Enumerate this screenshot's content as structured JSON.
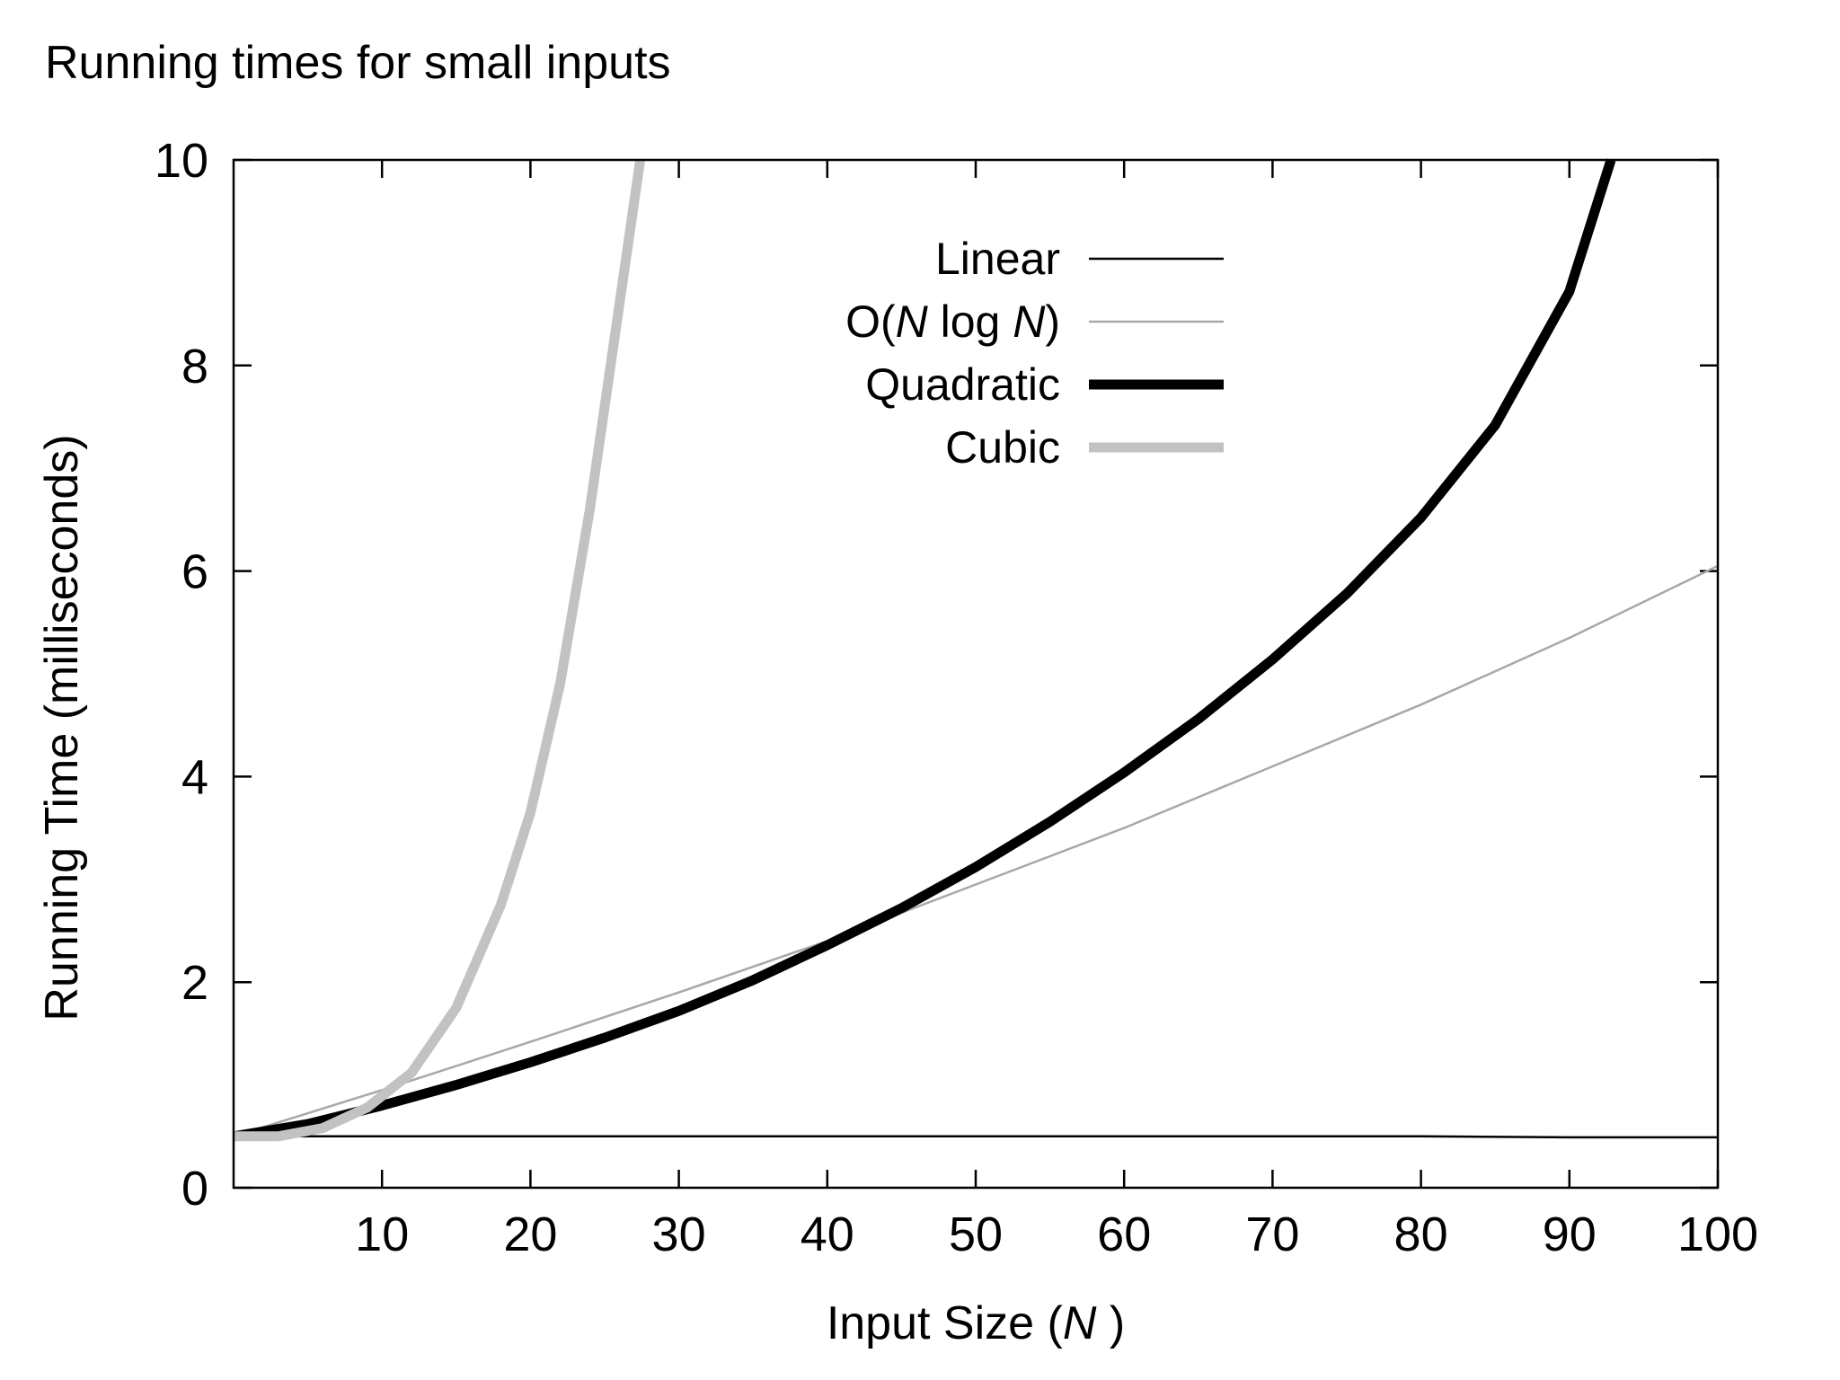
{
  "page": {
    "title": "Running times for small inputs"
  },
  "chart_data": {
    "type": "line",
    "title": "",
    "xlabel": {
      "prefix": "Input Size (",
      "var": "N",
      "suffix": " )"
    },
    "ylabel": "Running Time (milliseconds)",
    "xlim": [
      0,
      100
    ],
    "ylim": [
      0,
      10
    ],
    "xticks": [
      10,
      20,
      30,
      40,
      50,
      60,
      70,
      80,
      90,
      100
    ],
    "yticks": [
      0,
      2,
      4,
      6,
      8,
      10
    ],
    "grid": false,
    "legend_position": "top-center",
    "series": [
      {
        "name": "Linear",
        "label_parts": [
          {
            "text": "Linear",
            "italic": false
          }
        ],
        "color": "#000000",
        "style": "thin",
        "x": [
          0,
          10,
          20,
          30,
          40,
          50,
          60,
          70,
          80,
          90,
          100
        ],
        "y": [
          0.5,
          0.5,
          0.5,
          0.5,
          0.5,
          0.5,
          0.5,
          0.5,
          0.5,
          0.49,
          0.49
        ]
      },
      {
        "name": "O(N log N)",
        "label_parts": [
          {
            "text": "O(",
            "italic": false
          },
          {
            "text": "N",
            "italic": true
          },
          {
            "text": " log ",
            "italic": false
          },
          {
            "text": "N",
            "italic": true
          },
          {
            "text": ")",
            "italic": false
          }
        ],
        "color": "#a8a8a8",
        "style": "thin",
        "x": [
          0,
          10,
          20,
          30,
          40,
          50,
          60,
          70,
          80,
          90,
          100
        ],
        "y": [
          0.5,
          0.95,
          1.42,
          1.9,
          2.4,
          2.95,
          3.5,
          4.1,
          4.7,
          5.35,
          6.05
        ]
      },
      {
        "name": "Quadratic",
        "label_parts": [
          {
            "text": "Quadratic",
            "italic": false
          }
        ],
        "color": "#000000",
        "style": "thick",
        "x": [
          0,
          5,
          10,
          15,
          20,
          25,
          30,
          35,
          40,
          45,
          50,
          55,
          60,
          65,
          70,
          75,
          80,
          85,
          90,
          92.8
        ],
        "y": [
          0.5,
          0.62,
          0.8,
          1.0,
          1.22,
          1.46,
          1.72,
          2.02,
          2.36,
          2.72,
          3.12,
          3.56,
          4.04,
          4.56,
          5.14,
          5.78,
          6.52,
          7.42,
          8.72,
          10.0
        ]
      },
      {
        "name": "Cubic",
        "label_parts": [
          {
            "text": "Cubic",
            "italic": false
          }
        ],
        "color": "#c2c2c2",
        "style": "thick",
        "x": [
          0,
          3,
          6,
          9,
          12,
          15,
          18,
          20,
          22,
          24,
          26,
          27.4
        ],
        "y": [
          0.5,
          0.5,
          0.58,
          0.78,
          1.12,
          1.75,
          2.75,
          3.65,
          4.9,
          6.6,
          8.6,
          10.0
        ]
      }
    ]
  }
}
